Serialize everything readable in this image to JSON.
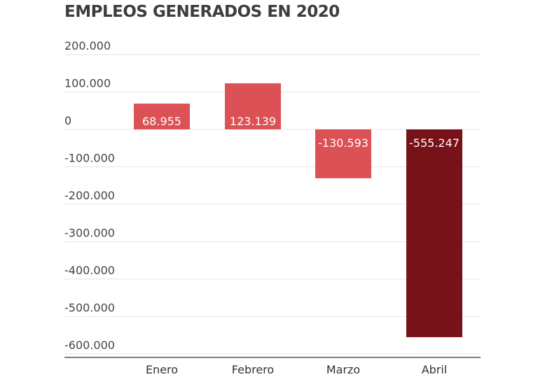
{
  "chart_data": {
    "type": "bar",
    "title": "EMPLEOS GENERADOS EN 2020",
    "xlabel": "",
    "ylabel": "",
    "categories": [
      "Enero",
      "Febrero",
      "Marzo",
      "Abril"
    ],
    "values": [
      68955,
      123139,
      -130593,
      -555247
    ],
    "value_labels": [
      "68.955",
      "123.139",
      "-130.593",
      "-555.247"
    ],
    "colors": [
      "#db5156",
      "#db5156",
      "#db5156",
      "#771218"
    ],
    "ylim": [
      -600000,
      200000
    ],
    "yticks": [
      200000,
      100000,
      0,
      -100000,
      -200000,
      -300000,
      -400000,
      -500000,
      -600000
    ],
    "ytick_labels": [
      "200.000",
      "100.000",
      "0",
      "-100.000",
      "-200.000",
      "-300.000",
      "-400.000",
      "-500.000",
      "-600.000"
    ],
    "grid": true,
    "legend": "none"
  }
}
